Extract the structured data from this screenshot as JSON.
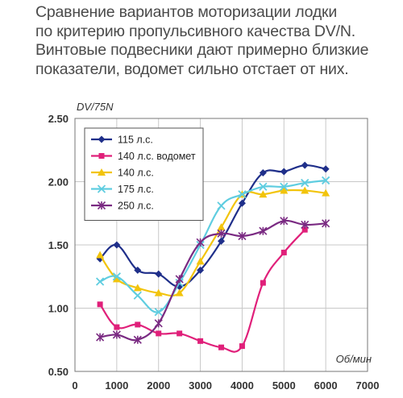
{
  "caption": {
    "lines": [
      "Сравнение вариантов моторизации лодки",
      "по критерию пропульсивного качества DV/N.",
      "Винтовые подвесники дают примерно близкие",
      "показатели, водомет сильно отстает от них."
    ]
  },
  "chart_data": {
    "type": "line",
    "title": "",
    "xlabel": "Об/мин",
    "ylabel": "DV/75N",
    "xlim": [
      0,
      7000
    ],
    "ylim": [
      0.5,
      2.5
    ],
    "x_ticks": [
      0,
      1000,
      2000,
      3000,
      4000,
      5000,
      6000,
      7000
    ],
    "y_ticks": [
      0.5,
      1.0,
      1.5,
      2.0,
      2.5
    ],
    "x_tick_labels": [
      "0",
      "1000",
      "2000",
      "3000",
      "4000",
      "5000",
      "6000",
      "7000"
    ],
    "y_tick_labels": [
      "0.50",
      "1.00",
      "1.50",
      "2.00",
      "2.50"
    ],
    "grid": true,
    "legend_position": "top-left",
    "series": [
      {
        "name": "115 л.с.",
        "color": "#1f2f8a",
        "marker": "diamond",
        "x": [
          600,
          1000,
          1500,
          2000,
          2500,
          3000,
          3500,
          4000,
          4500,
          5000,
          5500,
          6000
        ],
        "y": [
          1.39,
          1.5,
          1.3,
          1.27,
          1.17,
          1.3,
          1.53,
          1.83,
          2.07,
          2.08,
          2.13,
          2.1
        ]
      },
      {
        "name": "140 л.с. водомет",
        "color": "#e0207a",
        "marker": "square",
        "x": [
          600,
          1000,
          1500,
          2000,
          2500,
          3000,
          3500,
          4000,
          4500,
          5000,
          5500
        ],
        "y": [
          1.03,
          0.85,
          0.87,
          0.8,
          0.8,
          0.74,
          0.69,
          0.7,
          1.2,
          1.44,
          1.62
        ]
      },
      {
        "name": "140 л.с.",
        "color": "#f2c40c",
        "marker": "triangle",
        "x": [
          600,
          1000,
          1500,
          2000,
          2500,
          3000,
          3500,
          4000,
          4500,
          5000,
          5500,
          6000
        ],
        "y": [
          1.42,
          1.23,
          1.16,
          1.12,
          1.12,
          1.37,
          1.64,
          1.9,
          1.9,
          1.93,
          1.93,
          1.91
        ]
      },
      {
        "name": "175 л.с.",
        "color": "#5fcde0",
        "marker": "x",
        "x": [
          600,
          1000,
          1500,
          2000,
          2500,
          3000,
          3500,
          4000,
          4500,
          5000,
          5500,
          6000
        ],
        "y": [
          1.21,
          1.25,
          1.1,
          0.97,
          1.2,
          1.5,
          1.81,
          1.9,
          1.96,
          1.96,
          1.99,
          2.01
        ]
      },
      {
        "name": "250 л.с.",
        "color": "#7a2a82",
        "marker": "star",
        "x": [
          600,
          1000,
          1500,
          2000,
          2500,
          3000,
          3500,
          4000,
          4500,
          5000,
          5500,
          6000
        ],
        "y": [
          0.77,
          0.79,
          0.75,
          0.88,
          1.23,
          1.52,
          1.59,
          1.57,
          1.61,
          1.69,
          1.66,
          1.67
        ]
      }
    ]
  }
}
